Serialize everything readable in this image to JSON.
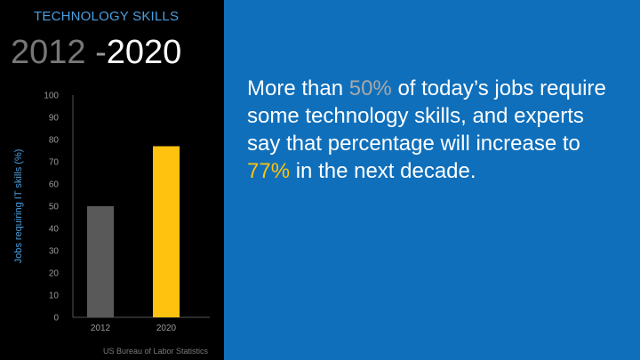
{
  "slide": {
    "title": "TECHNOLOGY SKILLS",
    "year_start": "2012",
    "year_dash": " -",
    "year_end": "2020",
    "source": "US Bureau of Labor Statistics",
    "body": {
      "part1": "More than ",
      "highlight1": "50%",
      "part2": " of today’s jobs require some technology skills, and experts say that percentage will increase to ",
      "highlight2": "77%",
      "part3": " in the next decade."
    },
    "colors": {
      "left_background": "#000000",
      "right_background": "#0f6fbb",
      "title": "#4a9fe0",
      "bar_2012": "#595959",
      "bar_2020": "#ffc20e",
      "highlight_2012": "#a8a8a8",
      "highlight_2020": "#ffc20e"
    }
  },
  "chart_data": {
    "type": "bar",
    "categories": [
      "2012",
      "2020"
    ],
    "values": [
      50,
      77
    ],
    "colors": [
      "#595959",
      "#ffc20e"
    ],
    "ylabel": "Jobs requiring IT skills (%)",
    "ylim": [
      0,
      100
    ],
    "yticks": [
      0,
      10,
      20,
      30,
      40,
      50,
      60,
      70,
      80,
      90,
      100
    ],
    "grid": false
  }
}
